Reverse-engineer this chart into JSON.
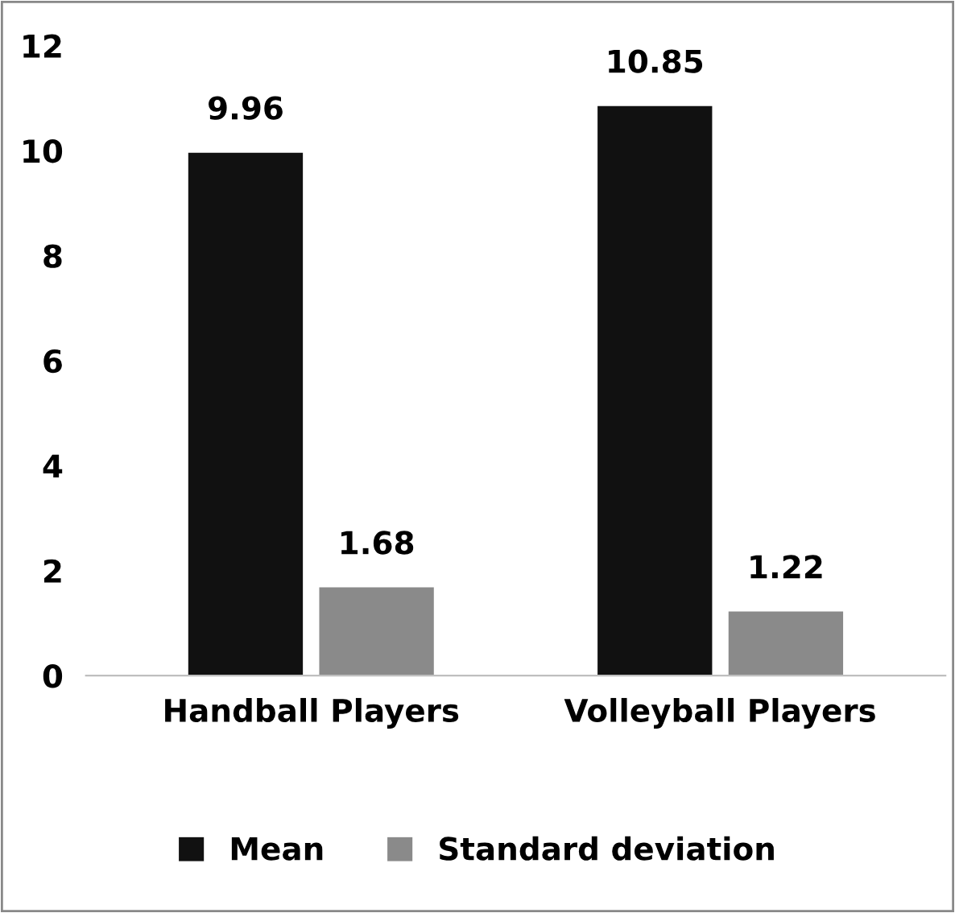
{
  "chart_data": {
    "type": "bar",
    "categories": [
      "Handball Players",
      "Volleyball Players"
    ],
    "series": [
      {
        "name": "Mean",
        "color": "#111111",
        "values": [
          9.96,
          10.85
        ]
      },
      {
        "name": "Standard deviation",
        "color": "#8a8a8a",
        "values": [
          1.68,
          1.22
        ]
      }
    ],
    "ylim": [
      0,
      12
    ],
    "yticks": [
      0,
      2,
      4,
      6,
      8,
      10,
      12
    ],
    "grid": false,
    "legend": "bottom",
    "data_labels": true
  }
}
